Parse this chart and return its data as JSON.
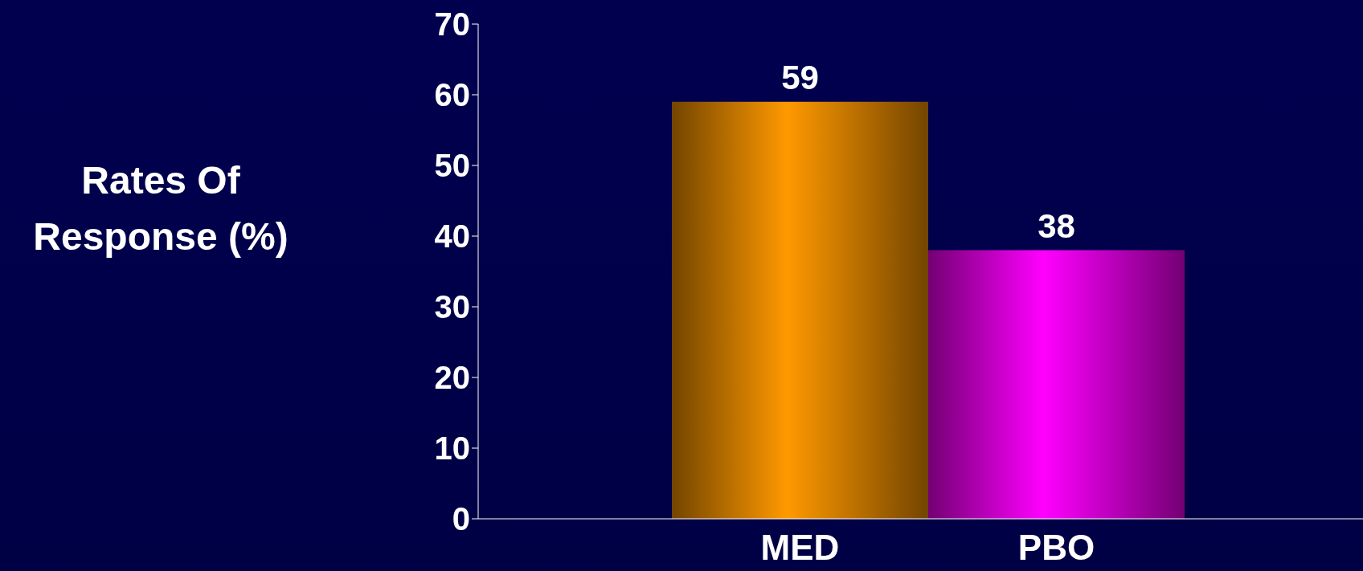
{
  "chart_data": {
    "type": "bar",
    "ylabel": "Rates Of Response (%)",
    "categories": [
      "MED",
      "PBO"
    ],
    "values": [
      59,
      38
    ],
    "colors": [
      "#ff9900",
      "#ff00ff"
    ],
    "ylim": [
      0,
      70
    ],
    "yticks": [
      0,
      10,
      20,
      30,
      40,
      50,
      60,
      70
    ],
    "data_labels": true
  }
}
